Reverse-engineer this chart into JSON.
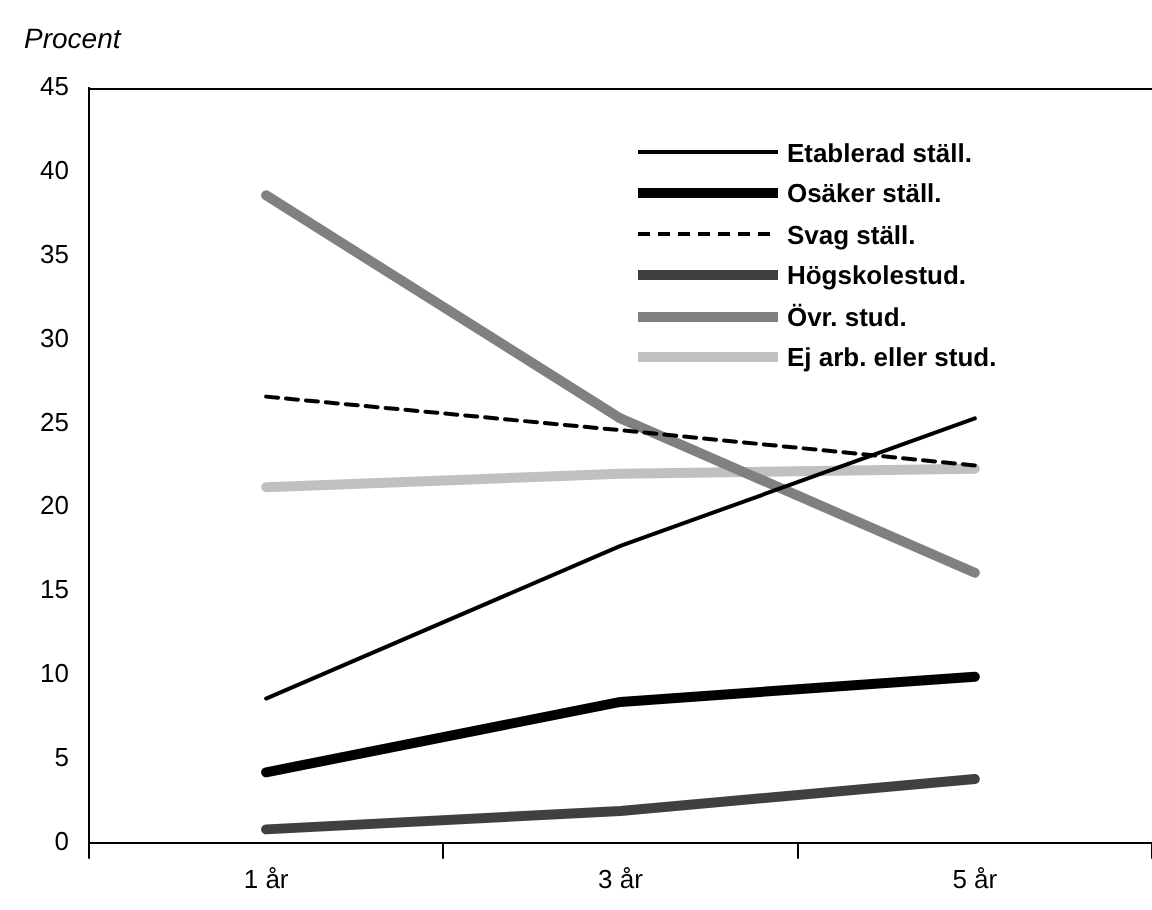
{
  "chart_data": {
    "type": "line",
    "ylabel": "Procent",
    "categories": [
      "1 år",
      "3 år",
      "5 år"
    ],
    "ylim": [
      0,
      45
    ],
    "yticks": [
      0,
      5,
      10,
      15,
      20,
      25,
      30,
      35,
      40,
      45
    ],
    "grid": false,
    "legend": "top right",
    "marker": "none",
    "series": [
      {
        "name": "Etablerad ställ.",
        "color": "#000000",
        "values": [
          8.6,
          17.7,
          25.3
        ]
      },
      {
        "name": "Osäker ställ.",
        "color": "#000000",
        "values": [
          4.2,
          8.4,
          9.9
        ]
      },
      {
        "name": "Svag ställ.",
        "color": "#000000",
        "values": [
          26.6,
          24.6,
          22.5
        ],
        "line_style": "dashed"
      },
      {
        "name": "Högskolestud.",
        "color": "#404040",
        "values": [
          0.8,
          1.9,
          3.8
        ]
      },
      {
        "name": "Övr. stud.",
        "color": "#808080",
        "values": [
          38.6,
          25.3,
          16.1
        ]
      },
      {
        "name": "Ej arb. eller stud.",
        "color": "#c0c0c0",
        "values": [
          21.2,
          22.0,
          22.3
        ]
      }
    ]
  }
}
